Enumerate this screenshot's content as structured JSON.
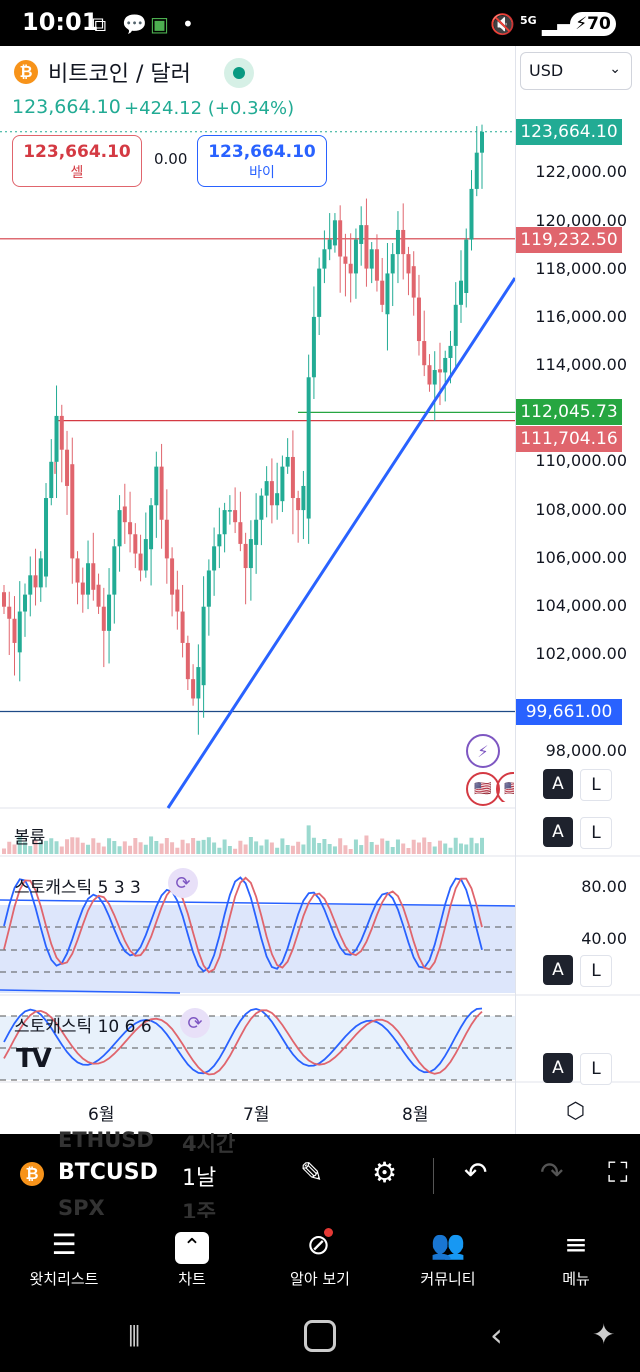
{
  "status_bar": {
    "time": "10:01",
    "battery": "70",
    "network": "5G"
  },
  "header": {
    "title": "비트코인 / 달러",
    "coin_glyph": "₿",
    "currency": "USD",
    "last_price": "123,664.10",
    "change": "+424.12 (+0.34%)"
  },
  "trade": {
    "sell_price": "123,664.10",
    "sell_label": "셀",
    "buy_price": "123,664.10",
    "buy_label": "바이",
    "spread": "0.00"
  },
  "axis": {
    "ticks": [
      "122,000.00",
      "120,000.00",
      "118,000.00",
      "116,000.00",
      "114,000.00",
      "110,000.00",
      "108,000.00",
      "106,000.00",
      "104,000.00",
      "102,000.00",
      "98,000.00"
    ],
    "tags": {
      "current": "123,664.10",
      "line1": "119,232.50",
      "line2": "112,045.73",
      "line3": "111,704.16",
      "line4": "99,661.00"
    },
    "stoch_ticks": [
      "80.00",
      "40.00"
    ],
    "alert_a": "A",
    "alert_l": "L"
  },
  "panes": {
    "volume": "볼륨",
    "stoch1": "스토캐스틱 5 3 3",
    "stoch2": "스토캐스틱 10 6 6"
  },
  "time_axis": [
    "6월",
    "7월",
    "8월"
  ],
  "toolbar": {
    "symbol": "BTCUSD",
    "timeframe": "1날",
    "ghost_symbol_above": "ETHUSD",
    "ghost_tf_above": "4시간",
    "ghost_symbol_below": "SPX",
    "ghost_tf_below": "1주"
  },
  "nav": [
    {
      "label": "왓치리스트",
      "icon": "watchlist-icon"
    },
    {
      "label": "차트",
      "icon": "chart-icon"
    },
    {
      "label": "알아 보기",
      "icon": "explore-icon"
    },
    {
      "label": "커뮤니티",
      "icon": "community-icon"
    },
    {
      "label": "메뉴",
      "icon": "menu-icon"
    }
  ],
  "colors": {
    "up": "#22ab94",
    "down": "#e0656d",
    "trend": "#2962ff",
    "k_line": "#2962ff",
    "d_line": "#e0656d"
  },
  "chart_data": {
    "type": "candlestick",
    "symbol": "BTCUSD",
    "interval": "1 day",
    "ylim": [
      97000,
      125000
    ],
    "x_labels": [
      "6월",
      "7월",
      "8월"
    ],
    "horizontal_levels": [
      119232.5,
      112045.73,
      111704.16,
      99661.0
    ],
    "last": 123664.1,
    "close_path": [
      104000,
      103500,
      102500,
      103800,
      104500,
      105300,
      104800,
      106000,
      108500,
      110000,
      111900,
      110500,
      109000,
      106000,
      105000,
      104500,
      105800,
      104700,
      104000,
      103000,
      104500,
      106500,
      108000,
      107500,
      107000,
      106200,
      105500,
      106800,
      108200,
      109800,
      107600,
      106000,
      104500,
      103800,
      102500,
      101000,
      100200,
      101500,
      104000,
      105500,
      106500,
      107000,
      108000,
      108000,
      107500,
      106600,
      105600,
      106800,
      107600,
      108600,
      109200,
      108200,
      108700,
      109800,
      110200,
      108500,
      108000,
      109000,
      113500,
      116000,
      118000,
      118800,
      119200,
      120000,
      118500,
      118200,
      117800,
      119200,
      119800,
      118000,
      118800,
      117500,
      116500,
      117800,
      118600,
      119600,
      118600,
      117800,
      116800,
      115000,
      114000,
      113200,
      113800,
      113700,
      114300,
      114800,
      116500,
      117500,
      119200,
      121300,
      122800,
      123664
    ]
  }
}
